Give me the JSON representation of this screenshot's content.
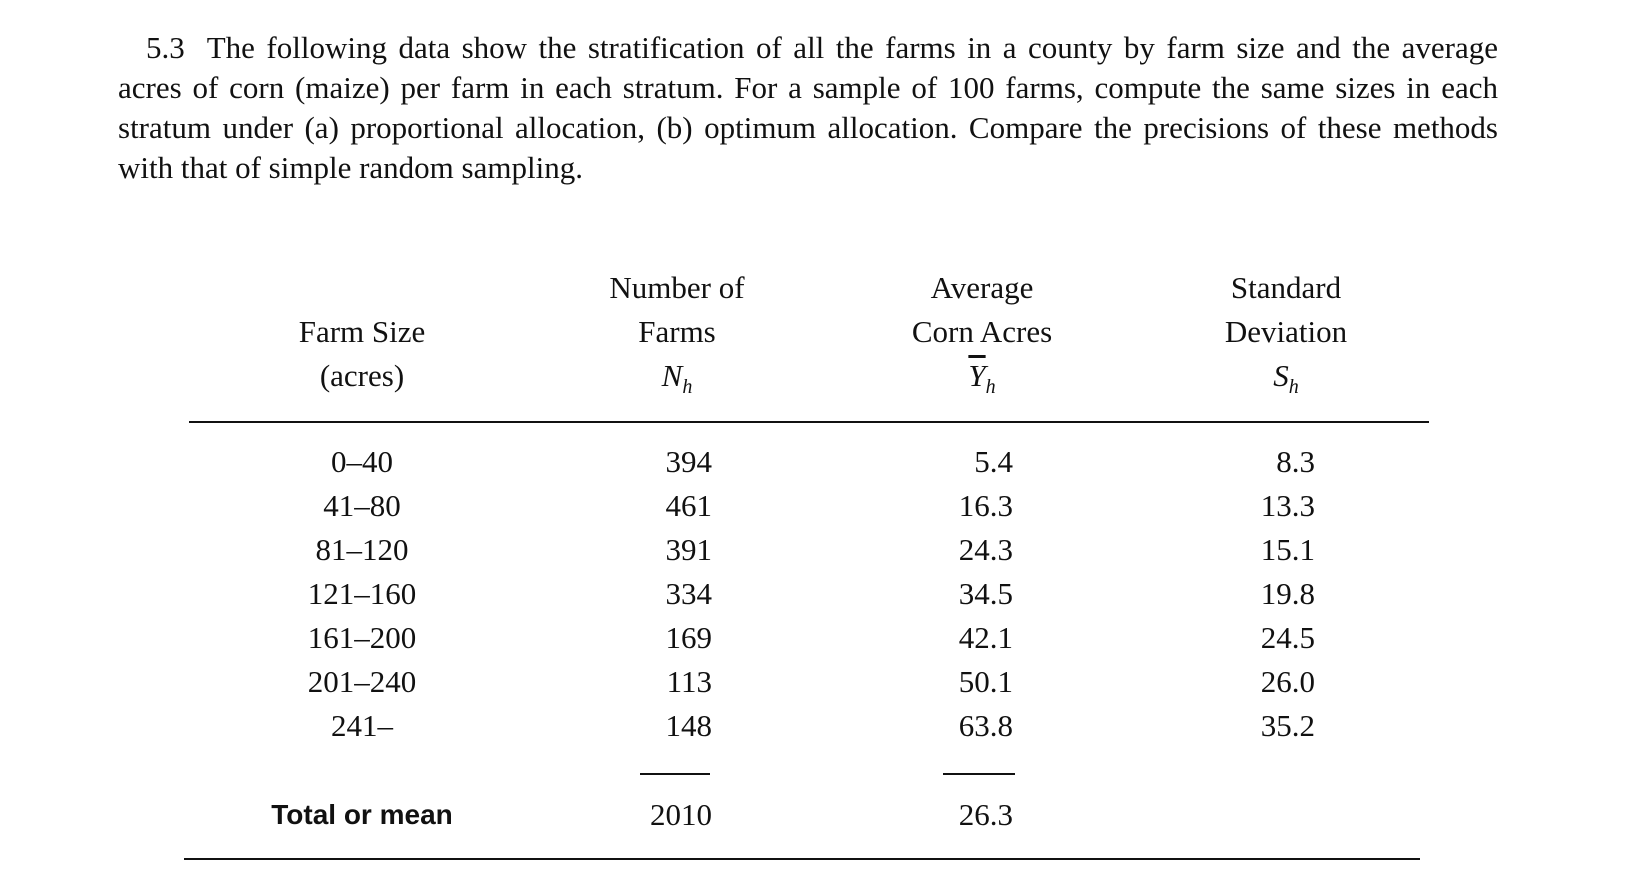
{
  "problem": {
    "number": "5.3",
    "text": "The following data show the stratification of all the farms in a county by farm size and the average acres of corn (maize) per farm in each stratum. For a sample of 100 farms, compute the same sizes in each stratum under (a) proportional allocation, (b) optimum allocation. Compare the precisions of these methods with that of simple random sampling."
  },
  "table": {
    "headers": [
      {
        "lines": [
          "Farm Size",
          "(acres)"
        ]
      },
      {
        "lines": [
          "Number of",
          "Farms"
        ],
        "symbol": "N",
        "subscript": "h"
      },
      {
        "lines": [
          "Average",
          "Corn Acres"
        ],
        "symbol": "Y",
        "subscript": "h"
      },
      {
        "lines": [
          "Standard",
          "Deviation"
        ],
        "symbol": "S",
        "subscript": "h"
      }
    ],
    "rows": [
      [
        "0–40",
        "394",
        "5.4",
        "8.3"
      ],
      [
        "41–80",
        "461",
        "16.3",
        "13.3"
      ],
      [
        "81–120",
        "391",
        "24.3",
        "15.1"
      ],
      [
        "121–160",
        "334",
        "34.5",
        "19.8"
      ],
      [
        "161–200",
        "169",
        "42.1",
        "24.5"
      ],
      [
        "201–240",
        "113",
        "50.1",
        "26.0"
      ],
      [
        "241–",
        "148",
        "63.8",
        "35.2"
      ]
    ],
    "total": [
      "Total or mean",
      "2010",
      "26.3"
    ]
  }
}
